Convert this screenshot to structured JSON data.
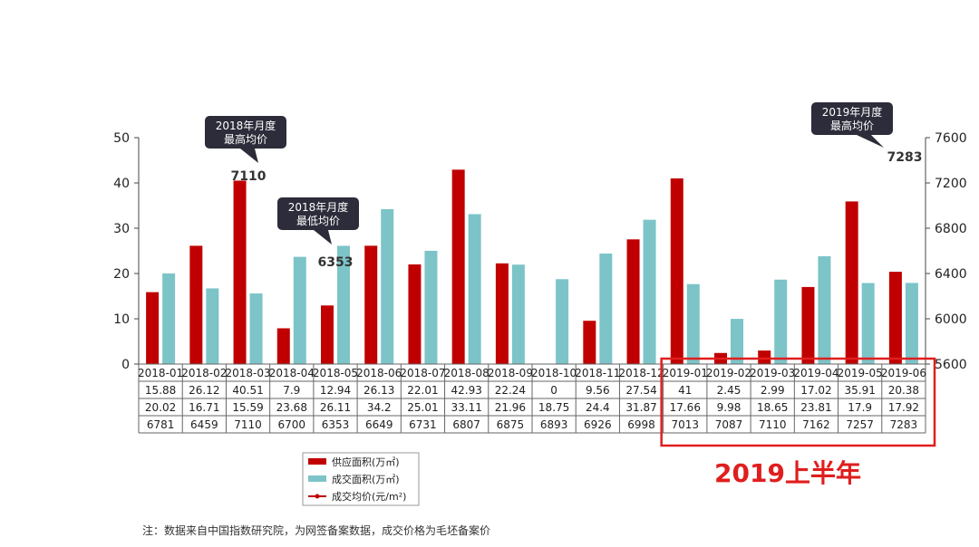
{
  "chart_data": {
    "type": "bar",
    "categories": [
      "2018-01",
      "2018-02",
      "2018-03",
      "2018-04",
      "2018-05",
      "2018-06",
      "2018-07",
      "2018-08",
      "2018-09",
      "2018-10",
      "2018-11",
      "2018-12",
      "2019-01",
      "2019-02",
      "2019-03",
      "2019-04",
      "2019-05",
      "2019-06"
    ],
    "series": [
      {
        "name": "供应面积(万㎡)",
        "type": "bar",
        "axis": "left",
        "color": "#c00000",
        "values": [
          15.88,
          26.12,
          40.51,
          7.9,
          12.94,
          26.13,
          22.01,
          42.93,
          22.24,
          0,
          9.56,
          27.54,
          41,
          2.45,
          2.99,
          17.02,
          35.91,
          20.38
        ]
      },
      {
        "name": "成交面积(万㎡)",
        "type": "bar",
        "axis": "left",
        "color": "#7cc4c8",
        "values": [
          20.02,
          16.71,
          15.59,
          23.68,
          26.11,
          34.2,
          25.01,
          33.11,
          21.96,
          18.75,
          24.4,
          31.87,
          17.66,
          9.98,
          18.65,
          23.81,
          17.9,
          17.92
        ]
      },
      {
        "name": "成交均价(元/m²)",
        "type": "line",
        "axis": "right",
        "color": "#c00000",
        "values": [
          6781,
          6459,
          7110,
          6700,
          6353,
          6649,
          6731,
          6807,
          6875,
          6893,
          6926,
          6998,
          7013,
          7087,
          7110,
          7162,
          7257,
          7283
        ]
      }
    ],
    "left_axis": {
      "ylim": [
        0,
        50
      ],
      "ticks": [
        0,
        10,
        20,
        30,
        40,
        50
      ]
    },
    "right_axis": {
      "ylim": [
        5600,
        7600
      ],
      "ticks": [
        5600,
        6000,
        6400,
        6800,
        7200,
        7600
      ]
    },
    "data_table": true,
    "legend_placement": "bottom-left",
    "annotations": [
      {
        "lines": [
          "2018年月度",
          "最高均价"
        ],
        "category": "2018-03",
        "value_label": "7110"
      },
      {
        "lines": [
          "2018年月度",
          "最低均价"
        ],
        "category": "2018-05",
        "value_label": "6353"
      },
      {
        "lines": [
          "2019年月度",
          "最高均价"
        ],
        "category": "2019-06",
        "value_label": "7283"
      }
    ],
    "highlight": {
      "label": "2019上半年",
      "from": "2019-01",
      "to": "2019-06",
      "color": "#e01e1e"
    }
  },
  "note": "注：数据来自中国指数研究院，为网签备案数据，成交价格为毛坯备案价"
}
